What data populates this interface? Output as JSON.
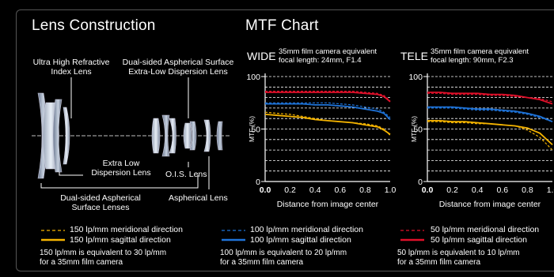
{
  "lens_construction": {
    "title": "Lens Construction",
    "labels": {
      "uhr": [
        "Ultra High Refractive",
        "Index Lens"
      ],
      "dsa_ed": [
        "Dual-sided Aspherical Surface",
        "Extra-Low Dispersion Lens"
      ],
      "ed": [
        "Extra Low",
        "Dispersion Lens"
      ],
      "ois": "O.I.S. Lens",
      "dsa": [
        "Dual-sided Aspherical",
        "Surface Lenses"
      ],
      "asph": "Aspherical Lens"
    }
  },
  "mtf": {
    "title": "MTF Chart",
    "y_axis_label": "MTF (%)",
    "x_axis_label": "Distance from image center",
    "y_ticks": [
      "100",
      "50",
      "0"
    ],
    "x_ticks": [
      "0.0",
      "0.2",
      "0.4",
      "0.6",
      "0.8",
      "1.0"
    ],
    "wide": {
      "mode": "WIDE",
      "spec": [
        "35mm film camera equivalent",
        "focal length: 24mm, F1.4"
      ]
    },
    "tele": {
      "mode": "TELE",
      "spec": [
        "35mm film camera equivalent",
        "focal length: 90mm, F2.3"
      ]
    }
  },
  "legend": [
    {
      "meridional": "150 lp/mm  meridional direction",
      "sagittal": "150 lp/mm  sagittal direction",
      "note": [
        "150 lp/mm is equivalent to 30 lp/mm",
        "for a 35mm film camera"
      ],
      "color": "#f5b400"
    },
    {
      "meridional": "100 lp/mm  meridional direction",
      "sagittal": "100 lp/mm  sagittal direction",
      "note": [
        "100 lp/mm is equivalent to 20 lp/mm",
        "for a 35mm film camera"
      ],
      "color": "#1e73d8"
    },
    {
      "meridional": "50 lp/mm  meridional direction",
      "sagittal": "50 lp/mm  sagittal direction",
      "note": [
        "50 lp/mm is equivalent to 10 lp/mm",
        "for a 35mm film camera"
      ],
      "color": "#e0102a"
    }
  ],
  "chart_data": [
    {
      "type": "line",
      "title": "WIDE",
      "xlabel": "Distance from image center",
      "ylabel": "MTF (%)",
      "xlim": [
        0,
        1.0
      ],
      "ylim": [
        0,
        100
      ],
      "grid": true,
      "x": [
        0,
        0.1,
        0.2,
        0.3,
        0.4,
        0.5,
        0.6,
        0.7,
        0.8,
        0.9,
        0.95,
        1.0
      ],
      "series": [
        {
          "name": "50 lp/mm meridional",
          "color": "#e0102a",
          "dash": true,
          "values": [
            86,
            86,
            86,
            86,
            86,
            86,
            86,
            86,
            85,
            84,
            82,
            77
          ]
        },
        {
          "name": "50 lp/mm sagittal",
          "color": "#e0102a",
          "dash": false,
          "values": [
            85,
            85,
            85,
            85,
            85,
            85,
            85,
            85,
            84,
            83,
            81,
            76
          ]
        },
        {
          "name": "100 lp/mm meridional",
          "color": "#1e73d8",
          "dash": true,
          "values": [
            75,
            75,
            75,
            75,
            75,
            75,
            74,
            73,
            71,
            69,
            66,
            61
          ]
        },
        {
          "name": "100 lp/mm sagittal",
          "color": "#1e73d8",
          "dash": false,
          "values": [
            74,
            74,
            74,
            74,
            73,
            73,
            72,
            71,
            69,
            67,
            65,
            59
          ]
        },
        {
          "name": "150 lp/mm meridional",
          "color": "#f5b400",
          "dash": true,
          "values": [
            66,
            65,
            64,
            62,
            60,
            58,
            57,
            56,
            55,
            53,
            50,
            44
          ]
        },
        {
          "name": "150 lp/mm sagittal",
          "color": "#f5b400",
          "dash": false,
          "values": [
            64,
            63,
            62,
            61,
            59,
            58,
            57,
            56,
            54,
            52,
            49,
            45
          ]
        }
      ]
    },
    {
      "type": "line",
      "title": "TELE",
      "xlabel": "Distance from image center",
      "ylabel": "MTF (%)",
      "xlim": [
        0,
        1.0
      ],
      "ylim": [
        0,
        100
      ],
      "grid": true,
      "x": [
        0,
        0.1,
        0.2,
        0.3,
        0.4,
        0.5,
        0.6,
        0.7,
        0.8,
        0.9,
        1.0
      ],
      "series": [
        {
          "name": "50 lp/mm meridional",
          "color": "#e0102a",
          "dash": true,
          "values": [
            84,
            84,
            83,
            83,
            83,
            82,
            82,
            81,
            80,
            79,
            76
          ]
        },
        {
          "name": "50 lp/mm sagittal",
          "color": "#e0102a",
          "dash": false,
          "values": [
            85,
            85,
            84,
            84,
            84,
            83,
            83,
            82,
            80,
            78,
            74
          ]
        },
        {
          "name": "100 lp/mm meridional",
          "color": "#1e73d8",
          "dash": true,
          "values": [
            70,
            70,
            70,
            69,
            68,
            68,
            67,
            66,
            64,
            61,
            57
          ]
        },
        {
          "name": "100 lp/mm sagittal",
          "color": "#1e73d8",
          "dash": false,
          "values": [
            71,
            71,
            71,
            70,
            69,
            69,
            68,
            67,
            65,
            62,
            57
          ]
        },
        {
          "name": "150 lp/mm meridional",
          "color": "#f5b400",
          "dash": true,
          "values": [
            57,
            57,
            56,
            56,
            55,
            55,
            54,
            53,
            49,
            42,
            30
          ]
        },
        {
          "name": "150 lp/mm sagittal",
          "color": "#f5b400",
          "dash": false,
          "values": [
            58,
            58,
            57,
            57,
            56,
            55,
            54,
            53,
            51,
            46,
            35
          ]
        }
      ]
    }
  ]
}
